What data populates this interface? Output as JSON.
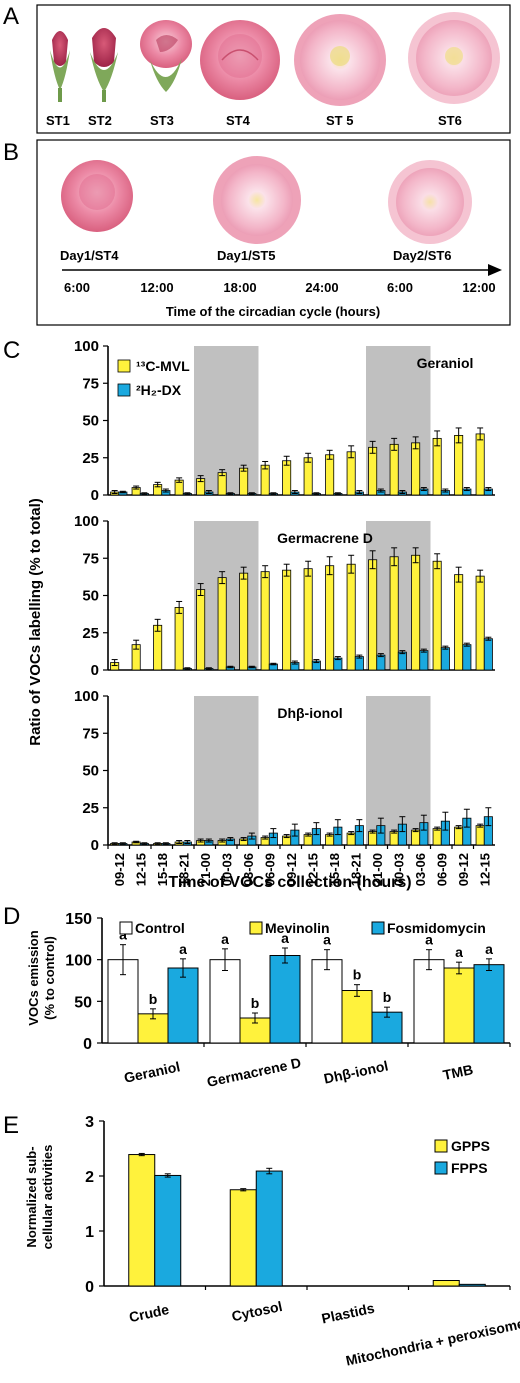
{
  "colors": {
    "mvl": "#fff23c",
    "dx": "#1aa9df",
    "control": "#ffffff",
    "night": "#c0c0c0",
    "flower_pink": "#e8789a",
    "flower_light": "#f2b8c8",
    "sepal_green": "#7fa85a"
  },
  "panel_a": {
    "letter": "A",
    "stages": [
      "ST1",
      "ST2",
      "ST3",
      "ST4",
      "ST 5",
      "ST6"
    ]
  },
  "panel_b": {
    "letter": "B",
    "flower_labels": [
      "Day1/ST4",
      "Day1/ST5",
      "Day2/ST6"
    ],
    "time_ticks": [
      "6:00",
      "12:00",
      "18:00",
      "24:00",
      "6:00",
      "12:00"
    ],
    "axis_title": "Time of the circadian cycle (hours)"
  },
  "panel_c": {
    "letter": "C",
    "ylabel": "Ratio of VOCs labelling (% to total)",
    "xlabel": "Time of VOCs collection (hours)",
    "yticks": [
      "0",
      "25",
      "50",
      "75",
      "100"
    ],
    "legend": [
      "¹³C-MVL",
      "²H₂-DX"
    ]
  },
  "panel_d": {
    "letter": "D",
    "ylabel_line1": "VOCs emission",
    "ylabel_line2": "(% to control)",
    "yticks": [
      "0",
      "50",
      "100",
      "150"
    ],
    "legend": [
      "Control",
      "Mevinolin",
      "Fosmidomycin"
    ]
  },
  "panel_e": {
    "letter": "E",
    "ylabel_line1": "Normalized sub-",
    "ylabel_line2": "cellular activities",
    "yticks": [
      "0",
      "1",
      "2",
      "3"
    ],
    "legend": [
      "GPPS",
      "FPPS"
    ]
  },
  "chart_data": [
    {
      "type": "bar",
      "title": "Geraniol",
      "ylabel": "Ratio of VOCs labelling (% to total)",
      "xlabel": "Time of VOCs collection (hours)",
      "ylim": [
        0,
        100
      ],
      "categories": [
        "09-12",
        "12-15",
        "15-18",
        "18-21",
        "21-00",
        "00-03",
        "03-06",
        "06-09",
        "09-12",
        "12-15",
        "15-18",
        "18-21",
        "21-00",
        "00-03",
        "03-06",
        "06-09",
        "09-12",
        "12-15"
      ],
      "night_bands": [
        [
          "21-00",
          "03-06"
        ],
        [
          "21-00",
          "03-06"
        ]
      ],
      "series": [
        {
          "name": "¹³C-MVL",
          "values": [
            2,
            5,
            7,
            10,
            11,
            15,
            18,
            20,
            23,
            25,
            27,
            29,
            32,
            34,
            35,
            38,
            40,
            41
          ],
          "errors": [
            1,
            1,
            1.5,
            1.5,
            2,
            2,
            2,
            2.5,
            3,
            3,
            3,
            4,
            4,
            4,
            4,
            5,
            5,
            4
          ]
        },
        {
          "name": "²H₂-DX",
          "values": [
            2,
            1,
            3,
            1,
            2,
            1,
            1,
            1,
            2,
            1,
            1,
            2,
            3,
            2,
            4,
            3,
            4,
            4
          ],
          "errors": [
            0.5,
            0.5,
            1,
            0.5,
            1,
            0.5,
            0.5,
            0.5,
            1,
            0.5,
            0.5,
            1,
            1,
            1,
            1,
            1,
            1,
            1
          ]
        }
      ]
    },
    {
      "type": "bar",
      "title": "Germacrene D",
      "ylim": [
        0,
        100
      ],
      "categories": [
        "09-12",
        "12-15",
        "15-18",
        "18-21",
        "21-00",
        "00-03",
        "03-06",
        "06-09",
        "09-12",
        "12-15",
        "15-18",
        "18-21",
        "21-00",
        "00-03",
        "03-06",
        "06-09",
        "09-12",
        "12-15"
      ],
      "night_bands": [
        [
          "21-00",
          "03-06"
        ],
        [
          "21-00",
          "03-06"
        ]
      ],
      "series": [
        {
          "name": "¹³C-MVL",
          "values": [
            5,
            17,
            30,
            42,
            54,
            62,
            65,
            66,
            67,
            68,
            70,
            71,
            74,
            76,
            77,
            73,
            64,
            63
          ],
          "errors": [
            2,
            3,
            4,
            4,
            4,
            4,
            4,
            4,
            4,
            5,
            6,
            6,
            6,
            6,
            5,
            5,
            5,
            4
          ]
        },
        {
          "name": "²H₂-DX",
          "values": [
            0,
            0,
            0,
            1,
            1,
            2,
            2,
            4,
            5,
            6,
            8,
            9,
            10,
            12,
            13,
            15,
            17,
            21
          ],
          "errors": [
            0,
            0,
            0,
            0.5,
            0.5,
            0.5,
            0.5,
            0.5,
            1,
            1,
            1,
            1,
            1,
            1,
            1,
            1,
            1,
            1
          ]
        }
      ]
    },
    {
      "type": "bar",
      "title": "Dhβ-ionol",
      "ylim": [
        0,
        100
      ],
      "categories": [
        "09-12",
        "12-15",
        "15-18",
        "18-21",
        "21-00",
        "00-03",
        "03-06",
        "06-09",
        "09-12",
        "12-15",
        "15-18",
        "18-21",
        "21-00",
        "00-03",
        "03-06",
        "06-09",
        "09-12",
        "12-15"
      ],
      "night_bands": [
        [
          "21-00",
          "03-06"
        ],
        [
          "21-00",
          "03-06"
        ]
      ],
      "series": [
        {
          "name": "¹³C-MVL",
          "values": [
            1,
            2,
            1,
            2,
            3,
            3,
            4,
            5,
            6,
            7,
            7,
            8,
            9,
            9,
            10,
            11,
            12,
            13
          ],
          "errors": [
            0.5,
            0.5,
            0.5,
            1,
            1,
            1,
            1,
            1,
            1,
            1,
            1,
            1,
            1,
            1,
            1,
            1,
            1,
            1
          ]
        },
        {
          "name": "²H₂-DX",
          "values": [
            1,
            1,
            1,
            2,
            3,
            4,
            6,
            8,
            10,
            11,
            12,
            13,
            13,
            14,
            15,
            16,
            18,
            19
          ],
          "errors": [
            0.5,
            0.5,
            0.5,
            1,
            1,
            1,
            2,
            3,
            4,
            4,
            5,
            4,
            5,
            5,
            5,
            6,
            6,
            6
          ]
        }
      ]
    },
    {
      "type": "bar",
      "ylabel": "VOCs emission (% to control)",
      "ylim": [
        0,
        150
      ],
      "categories": [
        "Geraniol",
        "Germacrene D",
        "Dhβ-ionol",
        "TMB"
      ],
      "series": [
        {
          "name": "Control",
          "values": [
            100,
            100,
            100,
            100
          ],
          "errors": [
            18,
            13,
            12,
            12
          ],
          "letters": [
            "a",
            "a",
            "a",
            "a"
          ]
        },
        {
          "name": "Mevinolin",
          "values": [
            35,
            30,
            63,
            90
          ],
          "errors": [
            6,
            6,
            7,
            7
          ],
          "letters": [
            "b",
            "b",
            "b",
            "a"
          ]
        },
        {
          "name": "Fosmidomycin",
          "values": [
            90,
            105,
            37,
            94
          ],
          "errors": [
            11,
            9,
            6,
            7
          ],
          "letters": [
            "a",
            "a",
            "b",
            "a"
          ]
        }
      ]
    },
    {
      "type": "bar",
      "ylabel": "Normalized sub-cellular activities",
      "ylim": [
        0,
        3
      ],
      "categories": [
        "Crude",
        "Cytosol",
        "Plastids",
        "Mitochondria + peroxisomes"
      ],
      "series": [
        {
          "name": "GPPS",
          "values": [
            2.39,
            1.75,
            0,
            0.1
          ],
          "errors": [
            0.02,
            0.02,
            0,
            0
          ]
        },
        {
          "name": "FPPS",
          "values": [
            2.01,
            2.09,
            0,
            0.03
          ],
          "errors": [
            0.03,
            0.05,
            0,
            0
          ]
        }
      ]
    }
  ]
}
